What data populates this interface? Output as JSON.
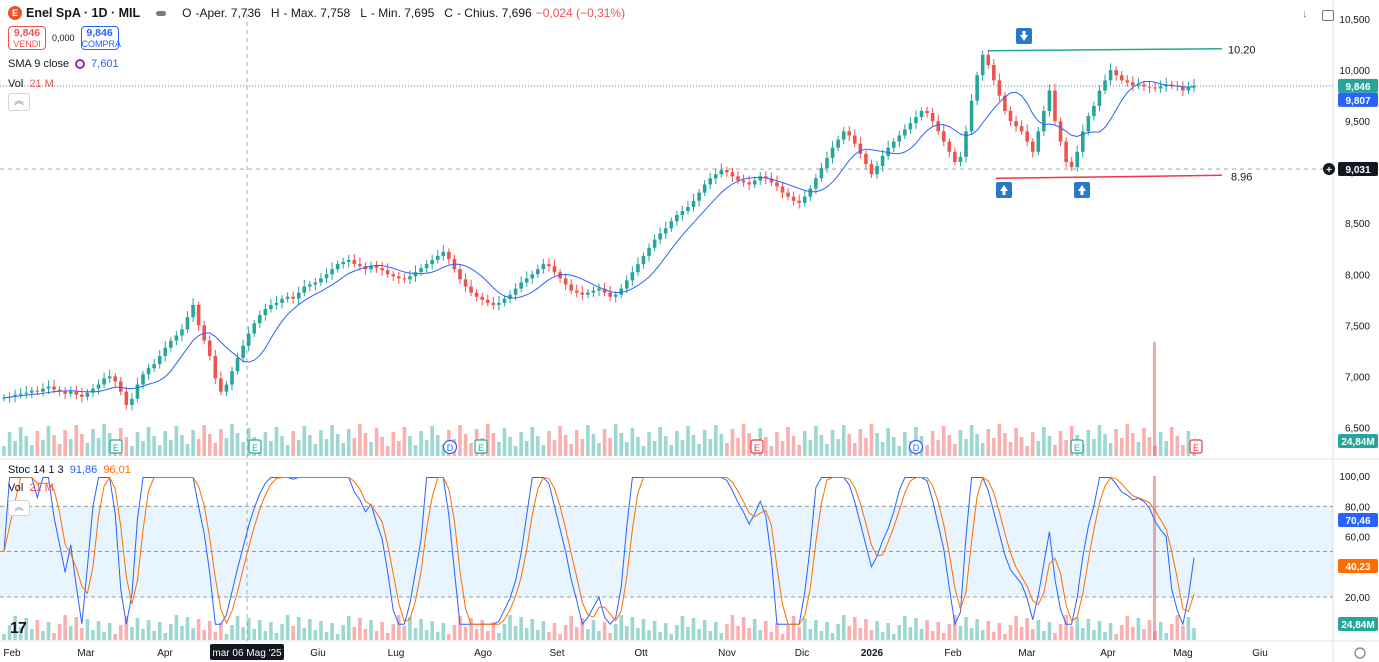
{
  "header": {
    "logo_letter": "E",
    "symbol": "Enel SpA · 1D · MIL",
    "open_label": "O",
    "open": "-Aper. 7,736",
    "high_label": "H",
    "high": "- Max. 7,758",
    "low_label": "L",
    "low": "- Min. 7,695",
    "close_label": "C",
    "close": "- Chius. 7,696",
    "change": "−0,024 (−0,31%)"
  },
  "trade": {
    "sell_price": "9,846",
    "sell_label": "VENDI",
    "spread": "0,000",
    "buy_price": "9,846",
    "buy_label": "COMPRA"
  },
  "sma": {
    "label": "SMA 9 close",
    "value": "7,601",
    "color": "#2962ff"
  },
  "volume_legend": {
    "label": "Vol",
    "value": "21 M"
  },
  "stoch_legend": {
    "label": "Stoc 14 1 3",
    "k": "91,86",
    "d": "96,01",
    "k_color": "#2962ff",
    "d_color": "#ff6d00"
  },
  "volume_legend2": {
    "label": "Vol",
    "value": "21 M"
  },
  "colors": {
    "up": "#26a69a",
    "down": "#ef5350",
    "sma": "#2962ff",
    "stoch_k": "#2962ff",
    "stoch_d": "#ff6d00",
    "resistance": "#22ab94",
    "support": "#f23645"
  },
  "chart_data": {
    "type": "candlestick",
    "symbol": "Enel SpA",
    "timeframe": "1D",
    "exchange": "MIL",
    "price_axis_ticks": [
      "10,500",
      "10,000",
      "9,500",
      "9,000",
      "8,500",
      "8,000",
      "7,500",
      "7,000",
      "6,500"
    ],
    "price_range": [
      6.2,
      10.55
    ],
    "price_tags": [
      {
        "value": "9,846",
        "color": "#26a69a"
      },
      {
        "value": "9,807",
        "color": "#2962ff"
      },
      {
        "value": "9,031",
        "color": "#131722"
      },
      {
        "value": "24,84M",
        "color": "#26a69a"
      }
    ],
    "stoch_axis_ticks": [
      "100,00",
      "80,00",
      "60,00",
      "40,00",
      "20,00"
    ],
    "stoch_tags": [
      {
        "value": "70,46",
        "color": "#2962ff"
      },
      {
        "value": "40,23",
        "color": "#ff6d00"
      },
      {
        "value": "24,84M",
        "color": "#26a69a"
      }
    ],
    "x_axis_labels": [
      "Feb",
      "Mar",
      "Apr",
      "mar 06 Mag '25",
      "Giu",
      "Lug",
      "Ago",
      "Set",
      "Ott",
      "Nov",
      "Dic",
      "2026",
      "Feb",
      "Mar",
      "Apr",
      "Mag",
      "Giu"
    ],
    "crosshair_label": "mar 06 Mag '25",
    "close_series": [
      6.79,
      6.8,
      6.82,
      6.83,
      6.84,
      6.86,
      6.85,
      6.88,
      6.9,
      6.87,
      6.85,
      6.83,
      6.85,
      6.82,
      6.8,
      6.84,
      6.88,
      6.92,
      6.98,
      7.0,
      6.95,
      6.85,
      6.72,
      6.78,
      6.92,
      7.02,
      7.08,
      7.12,
      7.2,
      7.28,
      7.35,
      7.4,
      7.46,
      7.58,
      7.7,
      7.5,
      7.35,
      7.2,
      6.98,
      6.85,
      6.92,
      7.05,
      7.18,
      7.3,
      7.42,
      7.52,
      7.6,
      7.66,
      7.7,
      7.72,
      7.76,
      7.78,
      7.76,
      7.82,
      7.88,
      7.9,
      7.92,
      7.96,
      8.0,
      8.05,
      8.1,
      8.12,
      8.14,
      8.1,
      8.08,
      8.05,
      8.08,
      8.06,
      8.04,
      8.0,
      7.98,
      7.96,
      7.95,
      7.98,
      8.02,
      8.06,
      8.1,
      8.14,
      8.18,
      8.22,
      8.15,
      8.05,
      7.95,
      7.88,
      7.82,
      7.78,
      7.75,
      7.72,
      7.7,
      7.72,
      7.76,
      7.8,
      7.86,
      7.92,
      7.96,
      8.0,
      8.05,
      8.1,
      8.08,
      8.02,
      7.96,
      7.9,
      7.84,
      7.82,
      7.8,
      7.82,
      7.84,
      7.86,
      7.82,
      7.78,
      7.8,
      7.86,
      7.94,
      8.02,
      8.1,
      8.18,
      8.26,
      8.34,
      8.4,
      8.45,
      8.52,
      8.58,
      8.62,
      8.66,
      8.72,
      8.8,
      8.88,
      8.94,
      8.98,
      9.02,
      9.0,
      8.96,
      8.92,
      8.9,
      8.88,
      8.92,
      8.96,
      8.94,
      8.9,
      8.86,
      8.8,
      8.76,
      8.72,
      8.7,
      8.76,
      8.84,
      8.94,
      9.04,
      9.14,
      9.24,
      9.32,
      9.4,
      9.36,
      9.28,
      9.18,
      9.08,
      8.98,
      9.06,
      9.16,
      9.24,
      9.3,
      9.36,
      9.42,
      9.48,
      9.54,
      9.6,
      9.58,
      9.5,
      9.4,
      9.3,
      9.2,
      9.1,
      9.15,
      9.4,
      9.7,
      9.95,
      10.15,
      10.05,
      9.9,
      9.75,
      9.6,
      9.5,
      9.45,
      9.4,
      9.3,
      9.2,
      9.4,
      9.6,
      9.8,
      9.5,
      9.3,
      9.1,
      9.05,
      9.2,
      9.4,
      9.55,
      9.65,
      9.8,
      9.9,
      10.0,
      9.95,
      9.9,
      9.88,
      9.85,
      9.86,
      9.84,
      9.83,
      9.82,
      9.84,
      9.86,
      9.85,
      9.84,
      9.8,
      9.83,
      9.846
    ],
    "stoch_overbought": 80,
    "stoch_mid": 50,
    "stoch_oversold": 20,
    "annotations": [
      {
        "type": "resistance_line",
        "label": "10.20",
        "value": 10.2
      },
      {
        "type": "support_line",
        "label": "8.96",
        "value": 8.96
      },
      {
        "type": "arrow_down",
        "near": "Mar 2026 high"
      },
      {
        "type": "arrow_up",
        "near": "Feb 2026 low"
      },
      {
        "type": "arrow_up",
        "near": "Mar 2026 low"
      }
    ],
    "event_markers": [
      {
        "type": "E",
        "month": "Mar"
      },
      {
        "type": "E",
        "month": "mar 06 Mag '25"
      },
      {
        "type": "D",
        "month": "Lug"
      },
      {
        "type": "E",
        "month": "Lug"
      },
      {
        "type": "E",
        "month": "Nov"
      },
      {
        "type": "D",
        "month": "2026"
      },
      {
        "type": "E",
        "month": "Mar"
      },
      {
        "type": "E",
        "month": "Mag"
      }
    ]
  }
}
